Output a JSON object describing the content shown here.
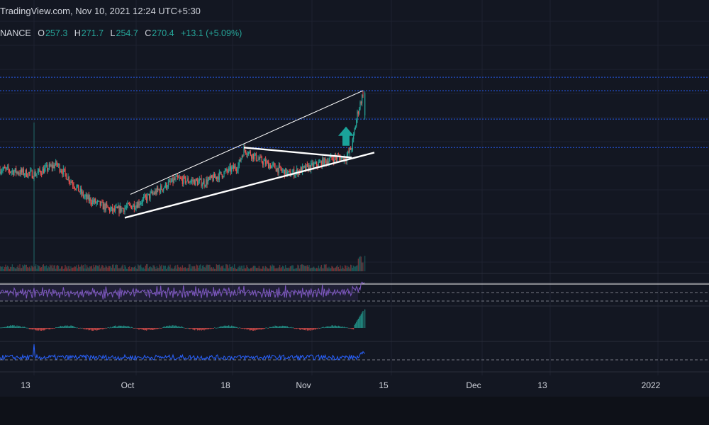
{
  "header": {
    "source": "TradingView.com, Nov 10, 2021 12:24 UTC+5:30",
    "symbol_fragment": "NANCE",
    "o_label": "O",
    "o_value": "257.3",
    "h_label": "H",
    "h_value": "271.7",
    "l_label": "L",
    "l_value": "254.7",
    "c_label": "C",
    "c_value": "270.4",
    "change": "+13.1 (+5.09%)"
  },
  "colors": {
    "background": "#131722",
    "up": "#26a69a",
    "down": "#ef5350",
    "rsi": "#7e57c2",
    "indicator_line": "#2962ff",
    "arrow": "#1aa39a",
    "price_line": "#2962ff"
  },
  "chart_data": {
    "type": "candlestick",
    "x_axis_labels": [
      "13",
      "Oct",
      "18",
      "Nov",
      "15",
      "Dec",
      "13",
      "2022"
    ],
    "x_range": [
      "2021-09-07",
      "2022-01-10"
    ],
    "last_candle": {
      "date": "2021-11-10",
      "open": 257.3,
      "high": 271.7,
      "low": 254.7,
      "close": 270.4
    },
    "anchor_closes": [
      {
        "date": "2021-09-07",
        "close": 225
      },
      {
        "date": "2021-09-13",
        "close": 222
      },
      {
        "date": "2021-09-17",
        "close": 228
      },
      {
        "date": "2021-09-22",
        "close": 208
      },
      {
        "date": "2021-09-27",
        "close": 200
      },
      {
        "date": "2021-10-01",
        "close": 204
      },
      {
        "date": "2021-10-08",
        "close": 219
      },
      {
        "date": "2021-10-13",
        "close": 217
      },
      {
        "date": "2021-10-19",
        "close": 227
      },
      {
        "date": "2021-10-20",
        "close": 237
      },
      {
        "date": "2021-10-23",
        "close": 230
      },
      {
        "date": "2021-10-28",
        "close": 222
      },
      {
        "date": "2021-11-02",
        "close": 228
      },
      {
        "date": "2021-11-05",
        "close": 232
      },
      {
        "date": "2021-11-07",
        "close": 232
      },
      {
        "date": "2021-11-08",
        "close": 238
      },
      {
        "date": "2021-11-09",
        "close": 258
      },
      {
        "date": "2021-11-10",
        "close": 270.4
      }
    ],
    "horizontal_levels": [
      280,
      272,
      255,
      238
    ],
    "trendlines": [
      {
        "name": "wedge-upper",
        "from": {
          "date": "2021-09-30",
          "value": 210
        },
        "to": {
          "date": "2021-11-10",
          "value": 272
        }
      },
      {
        "name": "wedge-lower",
        "from": {
          "date": "2021-09-29",
          "value": 196
        },
        "to": {
          "date": "2021-11-12",
          "value": 235
        }
      },
      {
        "name": "flag-top",
        "from": {
          "date": "2021-10-20",
          "value": 238
        },
        "to": {
          "date": "2021-11-08",
          "value": 232
        }
      }
    ],
    "annotation": {
      "type": "up-arrow",
      "date": "2021-11-07",
      "value": 245
    },
    "panes": [
      "price",
      "volume",
      "rsi",
      "histogram",
      "oscillator"
    ]
  }
}
